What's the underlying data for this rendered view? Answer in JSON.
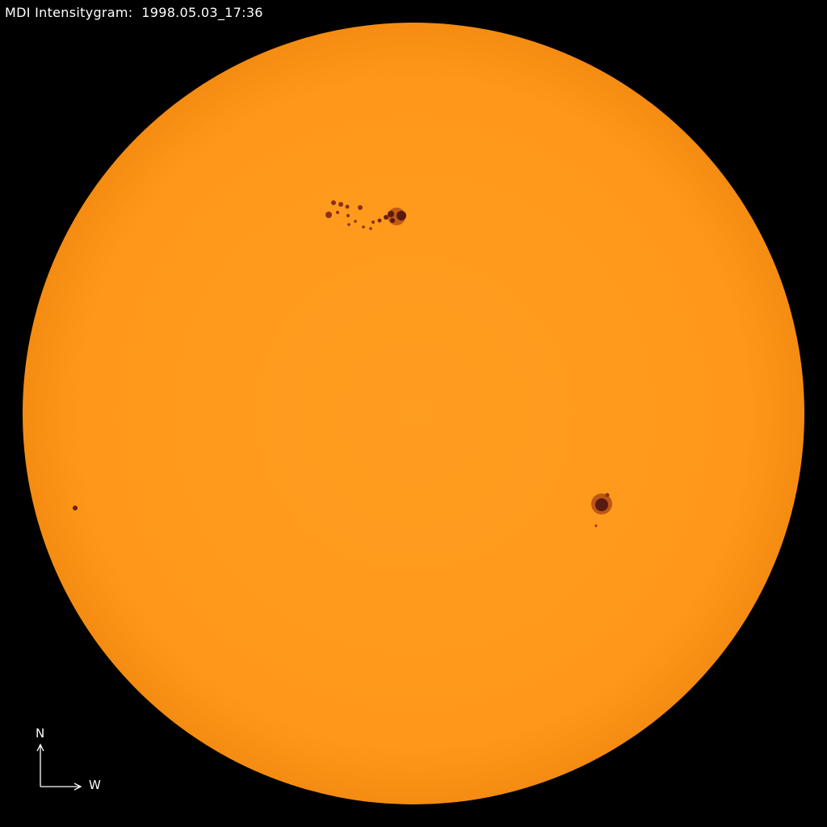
{
  "title": "MDI Intensitygram:  1998.05.03_17:36",
  "compass": {
    "north": "N",
    "west": "W"
  },
  "colors": {
    "disk": "#ff9a1c",
    "limb": "#f08a10",
    "spot_umbra": "#5a1a10",
    "spot_penumbra": "#b04a18",
    "background": "#000000"
  }
}
